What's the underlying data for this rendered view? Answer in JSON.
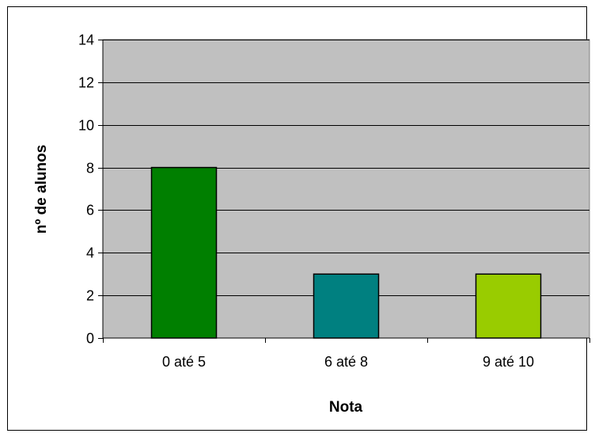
{
  "chart_data": {
    "type": "bar",
    "categories": [
      "0 até 5",
      "6 até 8",
      "9 até 10"
    ],
    "values": [
      8,
      3,
      3
    ],
    "bar_colors": [
      "#007f00",
      "#008080",
      "#99cc00"
    ],
    "xlabel": "Nota",
    "ylabel": "nº de alunos",
    "ylim": [
      0,
      14
    ],
    "yticks": [
      0,
      2,
      4,
      6,
      8,
      10,
      12,
      14
    ],
    "grid": true,
    "legend": "none",
    "plot_background": "#c0c0c0"
  }
}
